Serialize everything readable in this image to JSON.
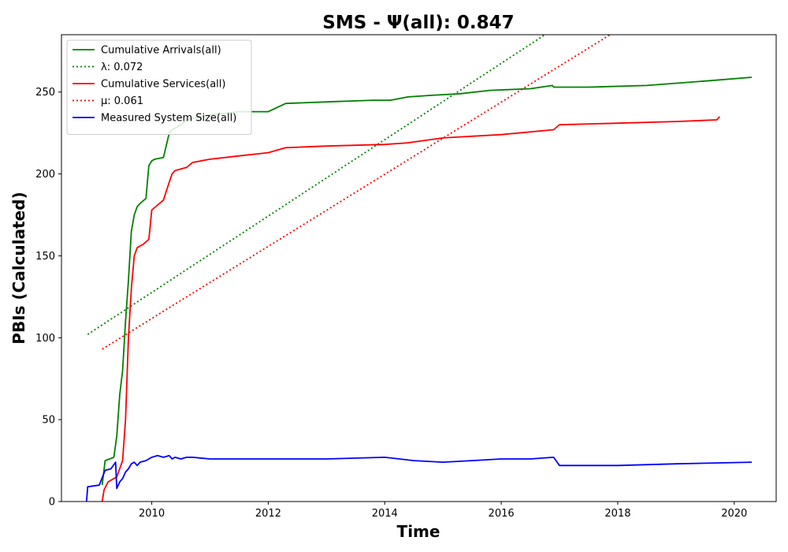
{
  "chart_data": {
    "type": "line",
    "title": "SMS -  Ψ(all): 0.847",
    "xlabel": "Time",
    "ylabel": "PBIs (Calculated)",
    "xlim": [
      2008.45,
      2020.72
    ],
    "ylim": [
      0,
      285
    ],
    "xticks": [
      2010,
      2012,
      2014,
      2016,
      2018,
      2020
    ],
    "yticks": [
      0,
      50,
      100,
      150,
      200,
      250
    ],
    "grid": false,
    "legend_position": "top-left",
    "series": [
      {
        "name": "Cumulative Arrivals(all)",
        "legend_label": "Cumulative Arrivals(all)",
        "color": "#008000",
        "style": "solid",
        "x": [
          2009.15,
          2009.2,
          2009.35,
          2009.4,
          2009.45,
          2009.5,
          2009.55,
          2009.6,
          2009.65,
          2009.7,
          2009.75,
          2009.8,
          2009.9,
          2009.95,
          2010.0,
          2010.05,
          2010.2,
          2010.3,
          2010.35,
          2010.4,
          2010.5,
          2010.6,
          2010.7,
          2011.0,
          2011.5,
          2012.0,
          2012.3,
          2013.0,
          2013.8,
          2014.1,
          2014.4,
          2014.8,
          2015.3,
          2015.8,
          2016.5,
          2016.88,
          2016.9,
          2017.5,
          2018.5,
          2019.6,
          2020.3
        ],
        "y": [
          10,
          25,
          27,
          40,
          65,
          80,
          110,
          135,
          165,
          175,
          180,
          182,
          185,
          205,
          208,
          209,
          210,
          225,
          227,
          228,
          230,
          233,
          234,
          236,
          238,
          238,
          243,
          244,
          245,
          245,
          247,
          248,
          249,
          251,
          252,
          254,
          253,
          253,
          254,
          257,
          259
        ]
      },
      {
        "name": "λ: 0.072",
        "legend_label": "λ: 0.072",
        "color": "#008000",
        "style": "dotted",
        "x": [
          2008.9,
          2016.75
        ],
        "y": [
          102,
          285
        ]
      },
      {
        "name": "Cumulative Services(all)",
        "legend_label": "Cumulative Services(all)",
        "color": "#ff0000",
        "style": "solid",
        "x": [
          2009.15,
          2009.18,
          2009.25,
          2009.4,
          2009.5,
          2009.55,
          2009.6,
          2009.65,
          2009.7,
          2009.75,
          2009.85,
          2009.95,
          2010.0,
          2010.1,
          2010.2,
          2010.3,
          2010.35,
          2010.4,
          2010.6,
          2010.7,
          2011.0,
          2011.5,
          2012.0,
          2012.3,
          2013.0,
          2014.0,
          2014.4,
          2014.6,
          2015.0,
          2016.0,
          2016.9,
          2017.0,
          2018.0,
          2019.0,
          2019.7,
          2019.75
        ],
        "y": [
          0,
          7,
          12,
          15,
          25,
          50,
          100,
          130,
          150,
          155,
          157,
          160,
          178,
          181,
          184,
          195,
          200,
          202,
          204,
          207,
          209,
          211,
          213,
          216,
          217,
          218,
          219,
          220,
          222,
          224,
          227,
          230,
          231,
          232,
          233,
          235
        ]
      },
      {
        "name": "μ: 0.061",
        "legend_label": "μ: 0.061",
        "color": "#ff0000",
        "style": "dotted",
        "x": [
          2009.15,
          2017.87
        ],
        "y": [
          93,
          285
        ]
      },
      {
        "name": "Measured System Size(all)",
        "legend_label": "Measured System Size(all)",
        "color": "#0000ff",
        "style": "solid",
        "x": [
          2008.88,
          2008.9,
          2009.1,
          2009.2,
          2009.3,
          2009.38,
          2009.4,
          2009.45,
          2009.5,
          2009.55,
          2009.6,
          2009.65,
          2009.7,
          2009.75,
          2009.8,
          2009.9,
          2009.95,
          2010.0,
          2010.1,
          2010.2,
          2010.3,
          2010.35,
          2010.4,
          2010.5,
          2010.6,
          2010.7,
          2011.0,
          2011.5,
          2012.0,
          2012.5,
          2013.0,
          2014.0,
          2014.5,
          2015.0,
          2015.5,
          2016.0,
          2016.5,
          2016.9,
          2017.0,
          2018.0,
          2019.0,
          2020.3
        ],
        "y": [
          0,
          9,
          10,
          19,
          20,
          24,
          8,
          12,
          14,
          18,
          20,
          23,
          24,
          22,
          24,
          25,
          26,
          27,
          28,
          27,
          28,
          26,
          27,
          26,
          27,
          27,
          26,
          26,
          26,
          26,
          26,
          27,
          25,
          24,
          25,
          26,
          26,
          27,
          22,
          22,
          23,
          24
        ]
      }
    ]
  }
}
